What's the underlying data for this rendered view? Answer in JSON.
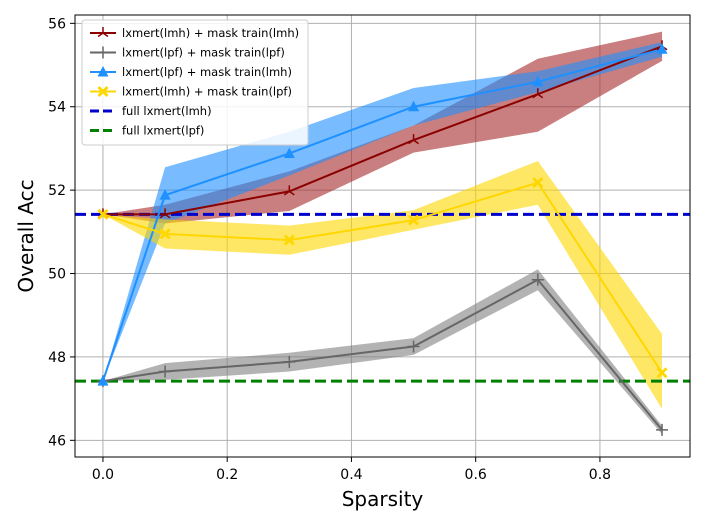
{
  "chart_data": {
    "type": "line",
    "title": "",
    "xlabel": "Sparsity",
    "ylabel": "Overall Acc",
    "xlim": [
      -0.045,
      0.945
    ],
    "ylim": [
      45.6,
      56.2
    ],
    "xticks": [
      0.0,
      0.2,
      0.4,
      0.6,
      0.8
    ],
    "xtick_labels": [
      "0.0",
      "0.2",
      "0.4",
      "0.6",
      "0.8"
    ],
    "yticks": [
      46,
      48,
      50,
      52,
      54,
      56
    ],
    "ytick_labels": [
      "46",
      "48",
      "50",
      "52",
      "54",
      "56"
    ],
    "grid": true,
    "legend_position": "top-left",
    "series": [
      {
        "name": "lxmert(lmh) + mask train(lmh)",
        "color": "#8b0000",
        "fill": "#a52a2a",
        "marker": "tri",
        "x": [
          0.0,
          0.1,
          0.3,
          0.5,
          0.7,
          0.9
        ],
        "y": [
          51.42,
          51.42,
          51.97,
          53.2,
          54.3,
          55.45
        ],
        "lower": [
          51.42,
          51.2,
          51.5,
          52.9,
          53.4,
          55.1
        ],
        "upper": [
          51.42,
          51.65,
          52.45,
          53.55,
          55.15,
          55.8
        ]
      },
      {
        "name": "lxmert(lpf) + mask train(lpf)",
        "color": "#666666",
        "fill": "#808080",
        "marker": "plus",
        "x": [
          0.0,
          0.1,
          0.3,
          0.5,
          0.7,
          0.9
        ],
        "y": [
          47.42,
          47.65,
          47.88,
          48.25,
          49.85,
          46.25
        ],
        "lower": [
          47.42,
          47.45,
          47.65,
          48.05,
          49.6,
          46.15
        ],
        "upper": [
          47.42,
          47.85,
          48.1,
          48.45,
          50.1,
          46.35
        ]
      },
      {
        "name": "lxmert(lpf) + mask train(lmh)",
        "color": "#1e90ff",
        "fill": "#1e90ff",
        "marker": "triangle",
        "x": [
          0.0,
          0.1,
          0.3,
          0.5,
          0.7,
          0.9
        ],
        "y": [
          47.42,
          51.88,
          52.88,
          54.0,
          54.6,
          55.38
        ],
        "lower": [
          47.42,
          51.2,
          52.35,
          53.55,
          54.35,
          55.2
        ],
        "upper": [
          47.42,
          52.55,
          53.4,
          54.45,
          54.85,
          55.55
        ]
      },
      {
        "name": "lxmert(lmh) + mask train(lpf)",
        "color": "#ffd700",
        "fill": "#ffd700",
        "marker": "x",
        "x": [
          0.0,
          0.1,
          0.3,
          0.5,
          0.7,
          0.9
        ],
        "y": [
          51.42,
          50.95,
          50.8,
          51.28,
          52.18,
          47.62
        ],
        "lower": [
          51.42,
          50.6,
          50.45,
          51.05,
          51.65,
          46.75
        ],
        "upper": [
          51.42,
          51.3,
          51.15,
          51.52,
          52.7,
          48.55
        ]
      }
    ],
    "reference_lines": [
      {
        "name": "full lxmert(lmh)",
        "y": 51.42,
        "color": "#0000cd"
      },
      {
        "name": "full lxmert(lpf)",
        "y": 47.42,
        "color": "#008000"
      }
    ]
  }
}
